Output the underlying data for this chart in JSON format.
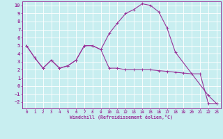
{
  "xlabel": "Windchill (Refroidissement éolien,°C)",
  "bg_color": "#c8eef0",
  "grid_color": "#ffffff",
  "line_color": "#993399",
  "x_ticks": [
    0,
    1,
    2,
    3,
    4,
    5,
    6,
    7,
    8,
    9,
    10,
    11,
    12,
    13,
    14,
    15,
    16,
    17,
    18,
    19,
    20,
    21,
    22,
    23
  ],
  "y_ticks": [
    -2,
    -1,
    0,
    1,
    2,
    3,
    4,
    5,
    6,
    7,
    8,
    9,
    10
  ],
  "ylim": [
    -2.8,
    10.5
  ],
  "xlim": [
    -0.5,
    23.5
  ],
  "line1_x": [
    0,
    1,
    2,
    3,
    4,
    5,
    6,
    7,
    8,
    9,
    10,
    11,
    12,
    13,
    14,
    15,
    16,
    17,
    18,
    22,
    23
  ],
  "line1_y": [
    5.0,
    3.5,
    2.2,
    3.2,
    2.2,
    2.5,
    3.2,
    5.0,
    5.0,
    4.5,
    6.5,
    7.8,
    9.0,
    9.5,
    10.2,
    10.0,
    9.2,
    7.2,
    4.2,
    -1.2,
    -2.2
  ],
  "line2_x": [
    0,
    1,
    2,
    3,
    4,
    5,
    6,
    7,
    8,
    9,
    10,
    11,
    12,
    13,
    14,
    15,
    16,
    17,
    18,
    19,
    20,
    21,
    22,
    23
  ],
  "line2_y": [
    5.0,
    3.5,
    2.2,
    3.2,
    2.2,
    2.5,
    3.2,
    5.0,
    5.0,
    4.5,
    2.2,
    2.2,
    2.0,
    2.0,
    2.0,
    2.0,
    1.9,
    1.8,
    1.7,
    1.6,
    1.5,
    1.5,
    -2.2,
    -2.2
  ]
}
